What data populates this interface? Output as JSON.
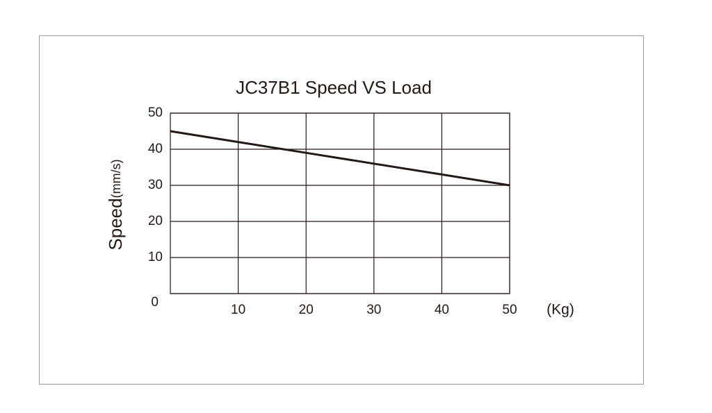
{
  "chart_data": {
    "type": "line",
    "title": "JC37B1 Speed VS Load",
    "ylabel": "Speed",
    "yunit": "(mm/s)",
    "xunit": "(Kg)",
    "x": [
      0,
      10,
      20,
      30,
      40,
      50
    ],
    "series": [
      {
        "name": "Speed",
        "color": "#231815",
        "values": [
          45,
          42,
          39,
          36,
          33,
          30
        ]
      }
    ],
    "xlim": [
      0,
      50
    ],
    "ylim": [
      0,
      50
    ],
    "xticks": [
      10,
      20,
      30,
      40,
      50
    ],
    "yticks": [
      0,
      10,
      20,
      30,
      40,
      50
    ],
    "grid": true
  }
}
